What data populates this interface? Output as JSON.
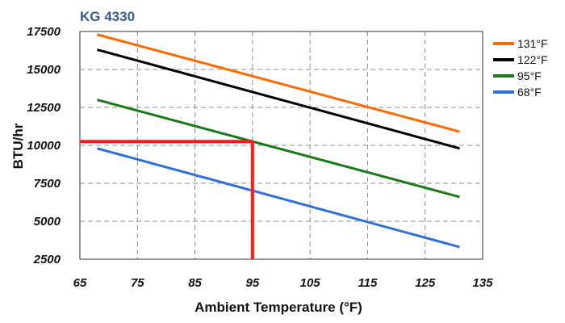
{
  "chart_data": {
    "type": "line",
    "title": "KG 4330",
    "xlabel": "Ambient Temperature (°F)",
    "ylabel": "BTU/hr",
    "xlim": [
      65,
      135
    ],
    "ylim": [
      2500,
      17500
    ],
    "x_ticks": [
      65,
      75,
      85,
      95,
      105,
      115,
      125,
      135
    ],
    "y_ticks": [
      2500,
      5000,
      7500,
      10000,
      12500,
      15000,
      17500
    ],
    "grid": "vertical and horizontal dashed lines",
    "legend_position": "right",
    "series": [
      {
        "name": "131°F",
        "color": "#ff6a00",
        "x": [
          68,
          131
        ],
        "y": [
          17300,
          10900
        ]
      },
      {
        "name": "122°F",
        "color": "#000000",
        "x": [
          68,
          131
        ],
        "y": [
          16300,
          9800
        ]
      },
      {
        "name": "95°F",
        "color": "#1a7a1a",
        "x": [
          68,
          131
        ],
        "y": [
          13000,
          6600
        ]
      },
      {
        "name": "68°F",
        "color": "#2f6fd6",
        "x": [
          68,
          131
        ],
        "y": [
          9800,
          3300
        ]
      }
    ],
    "annotation": {
      "color": "#ff1a1a",
      "x": 95,
      "y": 10250
    }
  },
  "title_color": "#3a5a8c"
}
